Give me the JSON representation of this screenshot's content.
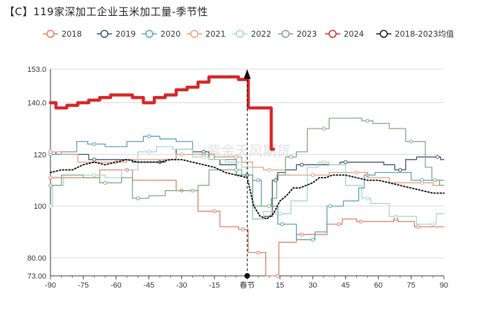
{
  "chart_data": {
    "type": "line",
    "title": "【C】119家深加工企业玉米加工量-季节性",
    "xlabel": "",
    "ylabel": "",
    "xlim": [
      -90,
      90
    ],
    "ylim": [
      73,
      153
    ],
    "x_ticks": [
      -90,
      -75,
      -60,
      -45,
      -30,
      -15,
      0,
      15,
      30,
      45,
      60,
      75,
      90
    ],
    "x_tick_labels": [
      "-90",
      "-75",
      "-60",
      "-45",
      "-30",
      "-15",
      "春节",
      "15",
      "30",
      "45",
      "60",
      "75",
      "90"
    ],
    "y_ticks": [
      73,
      80,
      100,
      120,
      140,
      153
    ],
    "y_tick_labels": [
      "73.00",
      "80.00",
      "100",
      "120",
      "140.0",
      "153.0"
    ],
    "grid": true,
    "legend_position": "top",
    "watermark": "紫金天风期货",
    "marker_x": 0,
    "series": [
      {
        "name": "2018",
        "color": "#e07b63",
        "style": "step",
        "width": 1.3,
        "points": [
          [
            -90,
            111
          ],
          [
            -70,
            111
          ],
          [
            -65,
            114
          ],
          [
            -55,
            114
          ],
          [
            -50,
            110
          ],
          [
            -35,
            110
          ],
          [
            -30,
            106
          ],
          [
            -25,
            106
          ],
          [
            -20,
            98
          ],
          [
            -15,
            98
          ],
          [
            -10,
            92
          ],
          [
            -6,
            92
          ],
          [
            -2,
            91
          ],
          [
            0,
            91
          ],
          [
            1,
            82
          ],
          [
            5,
            82
          ],
          [
            8,
            82
          ],
          [
            9,
            73
          ],
          [
            14,
            73
          ],
          [
            15,
            86
          ],
          [
            20,
            86
          ],
          [
            25,
            89
          ],
          [
            35,
            89
          ],
          [
            38,
            93
          ],
          [
            42,
            93
          ],
          [
            45,
            95
          ],
          [
            48,
            95
          ],
          [
            52,
            94
          ],
          [
            60,
            94
          ],
          [
            66,
            94
          ],
          [
            68,
            95
          ],
          [
            70,
            94
          ],
          [
            75,
            94
          ],
          [
            78,
            92
          ],
          [
            85,
            92
          ],
          [
            90,
            92
          ]
        ]
      },
      {
        "name": "2019",
        "color": "#3d4f66",
        "style": "step",
        "width": 1.3,
        "points": [
          [
            -90,
            121
          ],
          [
            -85,
            120
          ],
          [
            -75,
            120
          ],
          [
            -70,
            118
          ],
          [
            -55,
            118
          ],
          [
            -50,
            117
          ],
          [
            -40,
            117
          ],
          [
            -35,
            118
          ],
          [
            -30,
            122
          ],
          [
            -20,
            121
          ],
          [
            -15,
            118
          ],
          [
            -10,
            116
          ],
          [
            0,
            112
          ],
          [
            5,
            95
          ],
          [
            10,
            96
          ],
          [
            13,
            110
          ],
          [
            15,
            113
          ],
          [
            20,
            114
          ],
          [
            25,
            116
          ],
          [
            30,
            116
          ],
          [
            40,
            116
          ],
          [
            45,
            117
          ],
          [
            60,
            117
          ],
          [
            65,
            116
          ],
          [
            70,
            114
          ],
          [
            75,
            118
          ],
          [
            80,
            119
          ],
          [
            87,
            119
          ],
          [
            90,
            118
          ]
        ]
      },
      {
        "name": "2020",
        "color": "#5a9fb0",
        "style": "step",
        "width": 1.3,
        "points": [
          [
            -90,
            120
          ],
          [
            -80,
            121
          ],
          [
            -76,
            125
          ],
          [
            -70,
            124
          ],
          [
            -60,
            123
          ],
          [
            -50,
            125
          ],
          [
            -45,
            127
          ],
          [
            -35,
            126
          ],
          [
            -30,
            125
          ],
          [
            -20,
            120
          ],
          [
            -10,
            118
          ],
          [
            0,
            112
          ],
          [
            5,
            110
          ],
          [
            8,
            100
          ],
          [
            12,
            100
          ],
          [
            16,
            93
          ],
          [
            20,
            93
          ],
          [
            25,
            87
          ],
          [
            30,
            87
          ],
          [
            32,
            90
          ],
          [
            35,
            90
          ],
          [
            38,
            100
          ],
          [
            50,
            102
          ],
          [
            52,
            107
          ],
          [
            55,
            112
          ],
          [
            62,
            113
          ],
          [
            70,
            113
          ],
          [
            80,
            110
          ],
          [
            90,
            110
          ]
        ]
      },
      {
        "name": "2021",
        "color": "#e49c80",
        "style": "step",
        "width": 1.3,
        "points": [
          [
            -90,
            121
          ],
          [
            -80,
            120
          ],
          [
            -75,
            117
          ],
          [
            -60,
            117
          ],
          [
            -50,
            118
          ],
          [
            -35,
            118
          ],
          [
            -30,
            120
          ],
          [
            -20,
            120
          ],
          [
            -10,
            119
          ],
          [
            -5,
            119
          ],
          [
            0,
            117
          ],
          [
            5,
            115
          ],
          [
            10,
            114
          ],
          [
            15,
            114
          ],
          [
            20,
            112
          ],
          [
            30,
            112
          ],
          [
            35,
            112
          ],
          [
            40,
            113
          ],
          [
            50,
            113
          ],
          [
            60,
            111
          ],
          [
            70,
            109
          ],
          [
            80,
            109
          ],
          [
            90,
            108
          ]
        ]
      },
      {
        "name": "2022",
        "color": "#a7d5c4",
        "style": "step",
        "width": 1.3,
        "points": [
          [
            -90,
            100
          ],
          [
            -88,
            108
          ],
          [
            -80,
            112
          ],
          [
            -70,
            112
          ],
          [
            -60,
            111
          ],
          [
            -55,
            114
          ],
          [
            -45,
            121
          ],
          [
            -38,
            123
          ],
          [
            -30,
            122
          ],
          [
            -20,
            119
          ],
          [
            -15,
            118
          ],
          [
            -5,
            117
          ],
          [
            0,
            115
          ],
          [
            5,
            95
          ],
          [
            10,
            98
          ],
          [
            15,
            97
          ],
          [
            25,
            102
          ],
          [
            30,
            115
          ],
          [
            35,
            117
          ],
          [
            40,
            116
          ],
          [
            50,
            108
          ],
          [
            55,
            103
          ],
          [
            58,
            101
          ],
          [
            62,
            101
          ],
          [
            68,
            96
          ],
          [
            75,
            96
          ],
          [
            80,
            93
          ],
          [
            85,
            93
          ],
          [
            88,
            97
          ],
          [
            90,
            97
          ]
        ]
      },
      {
        "name": "2023",
        "color": "#7fa683",
        "style": "step",
        "width": 1.3,
        "points": [
          [
            -90,
            108
          ],
          [
            -80,
            112
          ],
          [
            -70,
            111
          ],
          [
            -65,
            109
          ],
          [
            -60,
            109
          ],
          [
            -55,
            111
          ],
          [
            -50,
            103
          ],
          [
            -40,
            104
          ],
          [
            -35,
            106
          ],
          [
            -25,
            106
          ],
          [
            -20,
            108
          ],
          [
            -15,
            114
          ],
          [
            -5,
            114
          ],
          [
            0,
            112
          ],
          [
            5,
            100
          ],
          [
            10,
            100
          ],
          [
            12,
            103
          ],
          [
            15,
            112
          ],
          [
            20,
            119
          ],
          [
            25,
            121
          ],
          [
            30,
            130
          ],
          [
            35,
            130
          ],
          [
            40,
            134
          ],
          [
            50,
            134
          ],
          [
            55,
            133
          ],
          [
            60,
            132
          ],
          [
            70,
            130
          ],
          [
            75,
            125
          ],
          [
            80,
            125
          ],
          [
            83,
            115
          ],
          [
            86,
            110
          ],
          [
            90,
            108
          ]
        ]
      },
      {
        "name": "2024",
        "color": "#d62728",
        "style": "step",
        "width": 4.5,
        "points": [
          [
            -90,
            140
          ],
          [
            -85,
            138
          ],
          [
            -80,
            139
          ],
          [
            -75,
            140
          ],
          [
            -70,
            141
          ],
          [
            -65,
            142
          ],
          [
            -60,
            143
          ],
          [
            -55,
            143
          ],
          [
            -50,
            142
          ],
          [
            -45,
            140
          ],
          [
            -40,
            142
          ],
          [
            -35,
            143
          ],
          [
            -30,
            145
          ],
          [
            -25,
            146
          ],
          [
            -20,
            148
          ],
          [
            -15,
            150
          ],
          [
            -10,
            150
          ],
          [
            -5,
            150
          ],
          [
            -3,
            149
          ],
          [
            0,
            149
          ],
          [
            1,
            138
          ],
          [
            5,
            138
          ],
          [
            10,
            138
          ],
          [
            12,
            122
          ]
        ]
      },
      {
        "name": "2018-2023均值",
        "color": "#111111",
        "style": "dotted",
        "width": 2,
        "points": [
          [
            -90,
            113
          ],
          [
            -85,
            114
          ],
          [
            -80,
            114
          ],
          [
            -75,
            116
          ],
          [
            -70,
            117
          ],
          [
            -65,
            116
          ],
          [
            -60,
            117
          ],
          [
            -55,
            118
          ],
          [
            -50,
            117
          ],
          [
            -45,
            117
          ],
          [
            -40,
            117
          ],
          [
            -35,
            118
          ],
          [
            -30,
            118
          ],
          [
            -25,
            117
          ],
          [
            -20,
            116
          ],
          [
            -15,
            115
          ],
          [
            -10,
            113
          ],
          [
            -5,
            112
          ],
          [
            0,
            111
          ],
          [
            3,
            100
          ],
          [
            6,
            96
          ],
          [
            9,
            95
          ],
          [
            12,
            97
          ],
          [
            15,
            102
          ],
          [
            18,
            104
          ],
          [
            21,
            107
          ],
          [
            24,
            107
          ],
          [
            27,
            108
          ],
          [
            30,
            109
          ],
          [
            33,
            111
          ],
          [
            36,
            111
          ],
          [
            39,
            112
          ],
          [
            42,
            112
          ],
          [
            45,
            112
          ],
          [
            50,
            111
          ],
          [
            55,
            110
          ],
          [
            60,
            110
          ],
          [
            65,
            109
          ],
          [
            70,
            108
          ],
          [
            75,
            107
          ],
          [
            80,
            106
          ],
          [
            85,
            105
          ],
          [
            90,
            105
          ]
        ]
      }
    ]
  }
}
